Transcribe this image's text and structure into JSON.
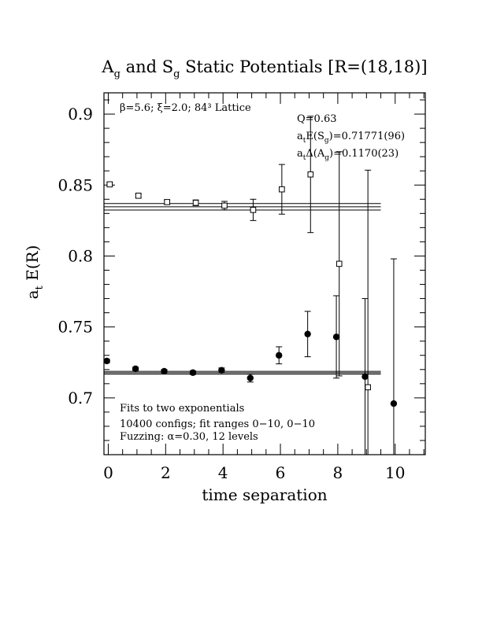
{
  "chart_data": {
    "type": "scatter",
    "title_main": "A",
    "title_sub1": "g",
    "title_mid": " and S",
    "title_sub2": "g",
    "title_rest": " Static Potentials [R=(18,18)]",
    "xlabel": "time separation",
    "ylabel_main": "a",
    "ylabel_sub": "t",
    "ylabel_rest": " E(R)",
    "xlim": [
      -0.15,
      11.05
    ],
    "ylim": [
      0.66,
      0.915
    ],
    "x_ticks": [
      0,
      2,
      4,
      6,
      8,
      10
    ],
    "x_tick_labels": [
      "0",
      "2",
      "4",
      "6",
      "8",
      "10"
    ],
    "y_ticks": [
      0.7,
      0.75,
      0.8,
      0.85,
      0.9
    ],
    "y_tick_labels": [
      "0.7",
      "0.75",
      "0.8",
      "0.85",
      "0.9"
    ],
    "lattice_info": "β=5.6; ξ=2.0; 84³ Lattice",
    "fit_info": {
      "q": "Q=0.63",
      "es_prefix": "a",
      "es_sub": "t",
      "es_mid": "E(S",
      "es_sub2": "g",
      "es_value": ")=0.71771(96)",
      "da_prefix": "a",
      "da_sub": "t",
      "da_mid": "Δ(A",
      "da_sub2": "g",
      "da_value": ")=0.1170(23)"
    },
    "notes": [
      "Fits to two exponentials",
      "10400 configs; fit ranges 0−10, 0−10",
      "Fuzzing: α=0.30, 12 levels"
    ],
    "series": [
      {
        "marker": "circle-filled",
        "x": [
          -0.05,
          0.95,
          1.95,
          2.95,
          3.95,
          4.95,
          5.95,
          6.95,
          7.95,
          8.95,
          9.95
        ],
        "y": [
          0.726,
          0.7205,
          0.7188,
          0.7178,
          0.7195,
          0.714,
          0.73,
          0.745,
          0.743,
          0.715,
          0.696
        ],
        "err": [
          0.0012,
          0.0012,
          0.0012,
          0.0013,
          0.0016,
          0.0028,
          0.006,
          0.016,
          0.029,
          0.055,
          0.102
        ]
      },
      {
        "marker": "square-open",
        "x": [
          0.05,
          1.05,
          2.05,
          3.05,
          4.05,
          5.05,
          6.05,
          7.05,
          8.05,
          9.05
        ],
        "y": [
          0.8505,
          0.8425,
          0.838,
          0.8375,
          0.8355,
          0.8325,
          0.847,
          0.8575,
          0.7945,
          0.7075
        ],
        "err": [
          0.001,
          0.0012,
          0.0015,
          0.002,
          0.003,
          0.0075,
          0.0175,
          0.041,
          0.079,
          0.153
        ]
      }
    ],
    "fit_bands": [
      {
        "center": 0.71771,
        "half_width": 0.00096,
        "x_range": [
          0,
          9.5
        ]
      },
      {
        "center": 0.8347,
        "half_width": 0.0023,
        "x_range": [
          0,
          9.5
        ]
      }
    ]
  }
}
